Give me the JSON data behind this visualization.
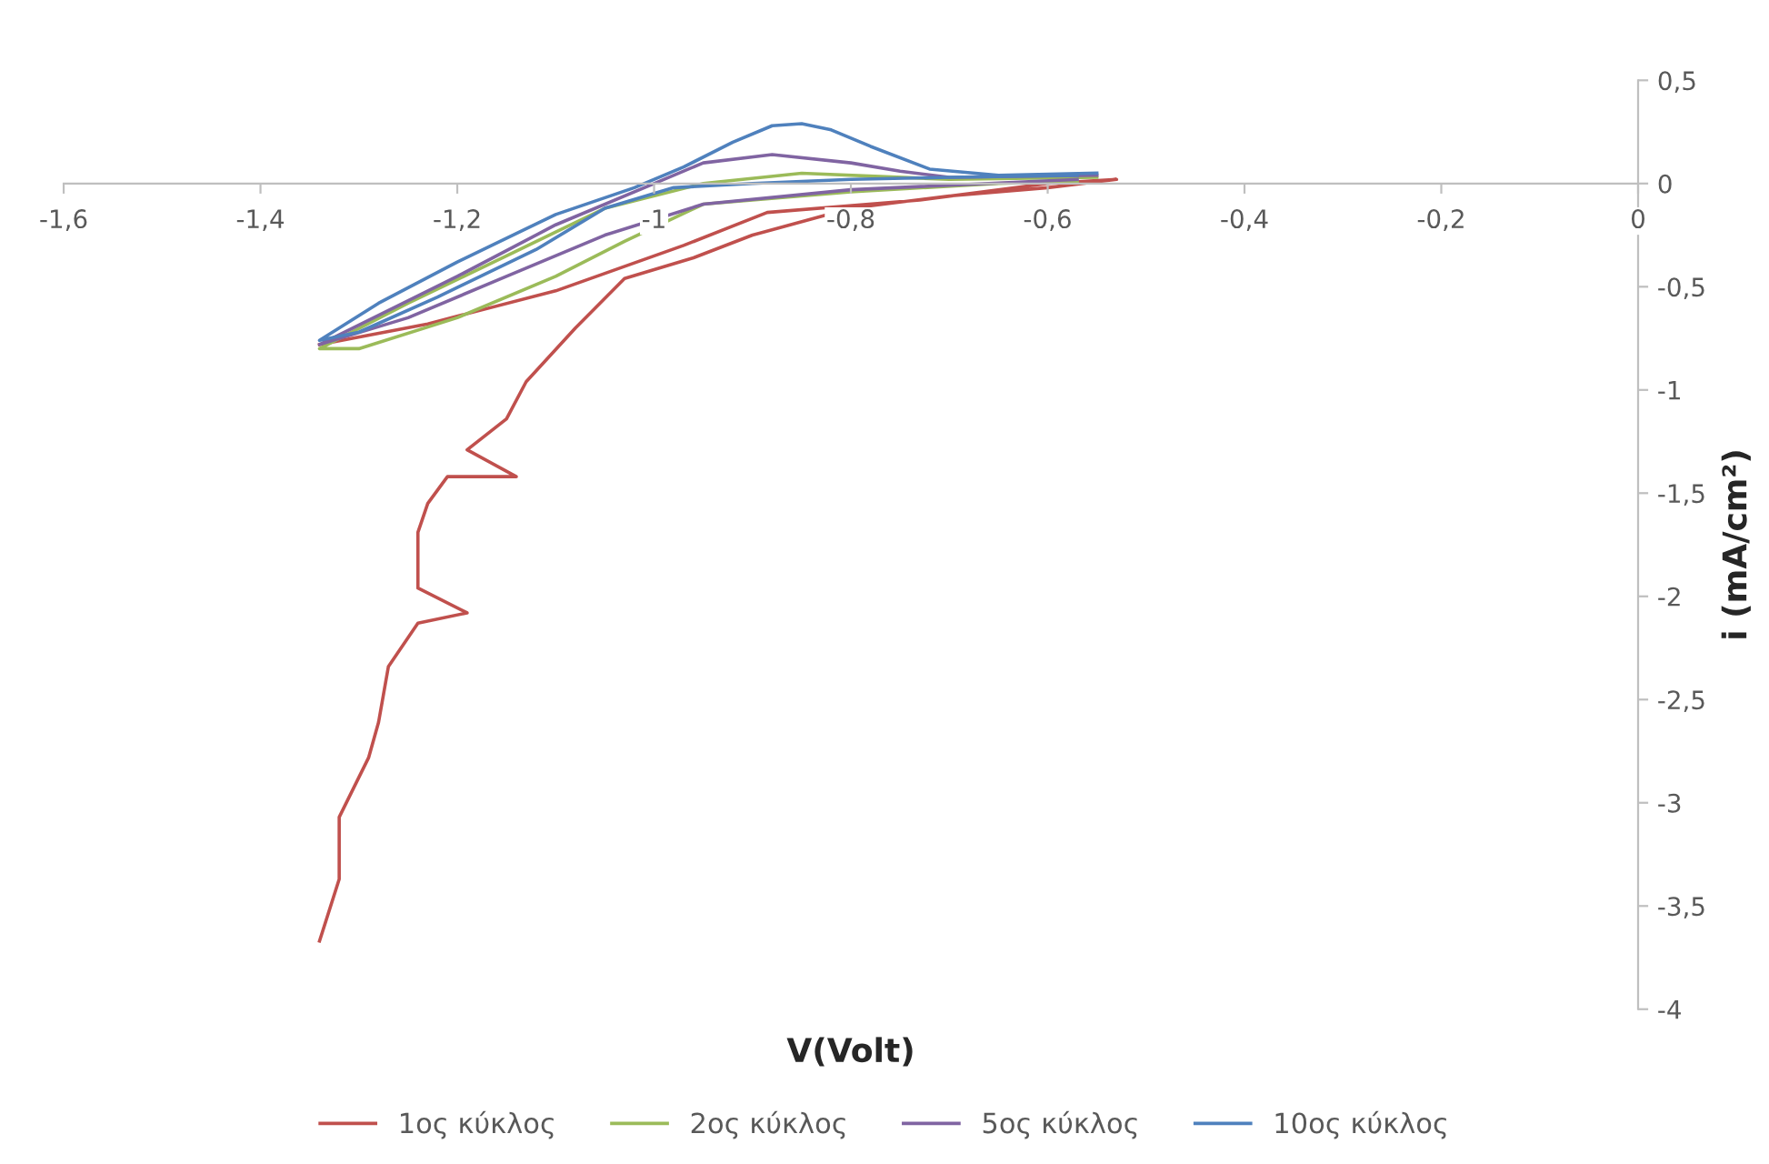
{
  "chart_data": {
    "type": "line",
    "xlabel": "V(Volt)",
    "ylabel": "i (mA/cm²)",
    "xlim": [
      -1.6,
      0
    ],
    "ylim": [
      -4,
      0.5
    ],
    "xticks": [
      {
        "value": -1.6,
        "label": "-1,6"
      },
      {
        "value": -1.4,
        "label": "-1,4"
      },
      {
        "value": -1.2,
        "label": "-1,2"
      },
      {
        "value": -1,
        "label": "-1"
      },
      {
        "value": -0.8,
        "label": "-0,8"
      },
      {
        "value": -0.6,
        "label": "-0,6"
      },
      {
        "value": -0.4,
        "label": "-0,4"
      },
      {
        "value": -0.2,
        "label": "-0,2"
      },
      0
    ],
    "yticks": [
      {
        "value": -4,
        "label": "-4"
      },
      {
        "value": -3.5,
        "label": "-3,5"
      },
      {
        "value": -3,
        "label": "-3"
      },
      {
        "value": -2.5,
        "label": "-2,5"
      },
      {
        "value": -2,
        "label": "-2"
      },
      {
        "value": -1.5,
        "label": "-1,5"
      },
      {
        "value": -1,
        "label": "-1"
      },
      {
        "value": -0.5,
        "label": "-0,5"
      },
      0,
      {
        "value": 0.5,
        "label": "0,5"
      }
    ],
    "grid": false,
    "legend": "bottom",
    "marker": "none",
    "line_style": "solid",
    "series": [
      {
        "name": "1ος κύκλος",
        "color": "#c0504d",
        "x": [
          -1.34,
          -1.32,
          -1.32,
          -1.29,
          -1.28,
          -1.27,
          -1.24,
          -1.19,
          -1.24,
          -1.24,
          -1.23,
          -1.21,
          -1.14,
          -1.19,
          -1.15,
          -1.13,
          -1.08,
          -1.03,
          -0.96,
          -0.9,
          -0.8,
          -0.7,
          -0.6,
          -0.53,
          -0.6,
          -0.73,
          -0.885,
          -0.97,
          -1.1,
          -1.23,
          -1.34
        ],
        "values": [
          -3.67,
          -3.37,
          -3.07,
          -2.78,
          -2.61,
          -2.34,
          -2.13,
          -2.08,
          -1.96,
          -1.69,
          -1.55,
          -1.42,
          -1.42,
          -1.29,
          -1.14,
          -0.96,
          -0.7,
          -0.46,
          -0.36,
          -0.25,
          -0.12,
          -0.06,
          -0.02,
          0.02,
          0.0,
          -0.08,
          -0.14,
          -0.3,
          -0.52,
          -0.68,
          -0.78
        ]
      },
      {
        "name": "2ος κύκλος",
        "color": "#9bbb59",
        "x": [
          -0.55,
          -0.7,
          -0.85,
          -0.95,
          -1.05,
          -1.15,
          -1.25,
          -1.34,
          -1.3,
          -1.2,
          -1.1,
          -1.03,
          -0.95,
          -0.8,
          -0.65,
          -0.57
        ],
        "values": [
          0.03,
          0.02,
          0.05,
          0.0,
          -0.12,
          -0.35,
          -0.58,
          -0.8,
          -0.8,
          -0.65,
          -0.45,
          -0.28,
          -0.1,
          -0.04,
          0.0,
          0.01
        ]
      },
      {
        "name": "5ος κύκλος",
        "color": "#8064a2",
        "x": [
          -0.55,
          -0.7,
          -0.75,
          -0.8,
          -0.88,
          -0.95,
          -1.0,
          -1.1,
          -1.2,
          -1.34,
          -1.25,
          -1.15,
          -1.05,
          -0.95,
          -0.8,
          -0.57
        ],
        "values": [
          0.04,
          0.03,
          0.06,
          0.1,
          0.14,
          0.1,
          0.0,
          -0.2,
          -0.45,
          -0.78,
          -0.65,
          -0.45,
          -0.25,
          -0.1,
          -0.03,
          0.02
        ]
      },
      {
        "name": "10ος κύκλος",
        "color": "#4f81bd",
        "x": [
          -0.55,
          -0.65,
          -0.72,
          -0.78,
          -0.82,
          -0.85,
          -0.88,
          -0.92,
          -0.97,
          -1.02,
          -1.1,
          -1.2,
          -1.28,
          -1.34,
          -1.3,
          -1.22,
          -1.12,
          -1.05,
          -0.98,
          -0.9,
          -0.8,
          -0.7,
          -0.57
        ],
        "values": [
          0.05,
          0.04,
          0.07,
          0.18,
          0.26,
          0.29,
          0.28,
          0.2,
          0.08,
          -0.02,
          -0.15,
          -0.38,
          -0.58,
          -0.76,
          -0.72,
          -0.55,
          -0.32,
          -0.12,
          -0.02,
          0.0,
          0.02,
          0.03,
          0.04
        ]
      }
    ]
  }
}
